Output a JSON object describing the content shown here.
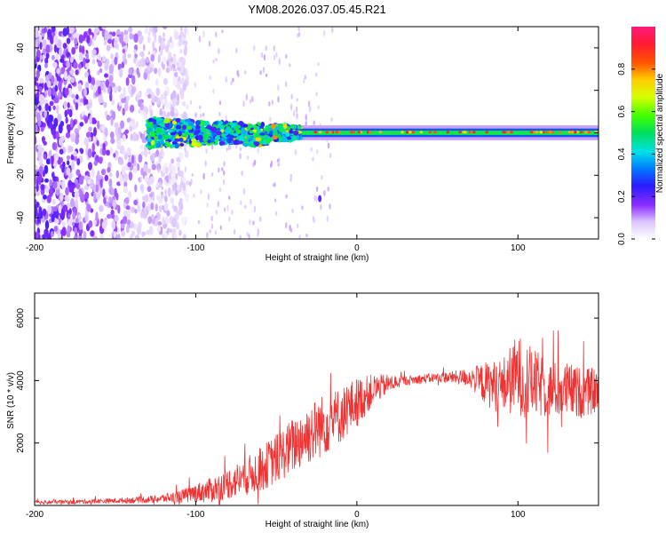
{
  "chart_data": [
    {
      "type": "heatmap",
      "title": "YM08.2026.037.05.45.R21",
      "xlabel": "Height of straight line (km)",
      "ylabel": "Frequency (Hz)",
      "xlim": [
        -200,
        150
      ],
      "ylim": [
        -50,
        50
      ],
      "xticks": [
        -200,
        -100,
        0,
        100
      ],
      "xtick_labels": [
        "-200",
        "-100",
        "0",
        "100"
      ],
      "yticks": [
        -40,
        -20,
        0,
        20,
        40
      ],
      "ytick_labels": [
        "-40",
        "-20",
        "0",
        "20",
        "40"
      ],
      "colorbar": {
        "label": "Normalized spectral amplitude",
        "range": [
          0,
          1
        ],
        "ticks": [
          0.0,
          0.2,
          0.4,
          0.6,
          0.8
        ],
        "tick_labels": [
          "0.0",
          "0.2",
          "0.4",
          "0.6",
          "0.8"
        ]
      },
      "features": [
        {
          "name": "broadband scatter",
          "x_range": [
            -200,
            -130
          ],
          "freq_range": [
            -50,
            50
          ],
          "amplitude": 0.15
        },
        {
          "name": "main band",
          "x_range": [
            -130,
            150
          ],
          "center_freq_hz": 0,
          "amplitude": 0.7
        },
        {
          "name": "isolated echo",
          "x": -23,
          "freq_hz": -31,
          "amplitude": 0.2
        }
      ]
    },
    {
      "type": "line",
      "xlabel": "Height of straight line (km)",
      "ylabel": "SNR (10 * v/v)",
      "xlim": [
        -200,
        150
      ],
      "ylim": [
        0,
        6800
      ],
      "xticks": [
        -200,
        -100,
        0,
        100
      ],
      "xtick_labels": [
        "-200",
        "-100",
        "0",
        "100"
      ],
      "yticks": [
        2000,
        4000,
        6000
      ],
      "ytick_labels": [
        "2000",
        "4000",
        "6000"
      ],
      "line_color": "#ee3333",
      "series": [
        {
          "name": "SNR envelope",
          "x": [
            -200,
            -175,
            -150,
            -125,
            -110,
            -100,
            -90,
            -80,
            -70,
            -60,
            -50,
            -40,
            -30,
            -20,
            -10,
            0,
            10,
            20,
            30,
            40,
            50,
            60,
            70,
            80,
            90,
            100,
            110,
            120,
            130,
            140,
            150
          ],
          "values": [
            100,
            120,
            150,
            200,
            280,
            400,
            500,
            700,
            900,
            1150,
            1500,
            1900,
            2300,
            2600,
            2900,
            3300,
            3700,
            3900,
            4000,
            4050,
            4100,
            4100,
            4100,
            3900,
            3800,
            4200,
            3900,
            3700,
            3700,
            3600,
            3700
          ],
          "noise": [
            60,
            70,
            80,
            120,
            200,
            300,
            400,
            500,
            600,
            700,
            800,
            900,
            1000,
            1000,
            900,
            800,
            500,
            300,
            150,
            150,
            150,
            200,
            300,
            700,
            900,
            1300,
            1100,
            900,
            900,
            800,
            700
          ]
        }
      ]
    }
  ]
}
